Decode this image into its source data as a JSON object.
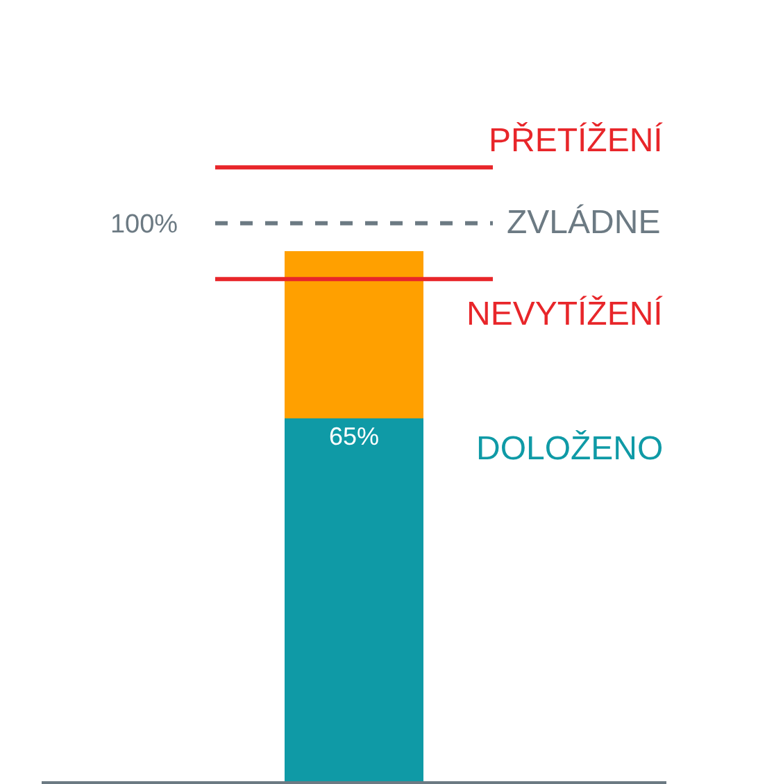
{
  "chart_data": {
    "type": "bar",
    "stacked": true,
    "categories": [
      null
    ],
    "series": [
      {
        "color": "#0f9aa6",
        "values": [
          65
        ],
        "value_labels": [
          "65%"
        ],
        "name": "DOLOŽENO"
      },
      {
        "color": "#ffa000",
        "values": [
          30
        ]
      }
    ],
    "ylim": [
      0,
      140
    ],
    "yticks": [
      {
        "value": 100,
        "label": "100%"
      }
    ],
    "tick_labels": "y",
    "grid": false,
    "legend": false,
    "ref_lines": [
      {
        "axis": "y",
        "value": 110,
        "label": "PŘETÍŽENÍ",
        "color": "#e8262a",
        "line_style": "solid"
      },
      {
        "axis": "y",
        "value": 100,
        "label": "ZVLÁDNE",
        "color": "#6c7a83",
        "line_style": "dashed"
      },
      {
        "axis": "y",
        "value": 90,
        "label": "NEVYTÍŽENÍ",
        "color": "#e8262a",
        "line_style": "solid"
      }
    ]
  }
}
